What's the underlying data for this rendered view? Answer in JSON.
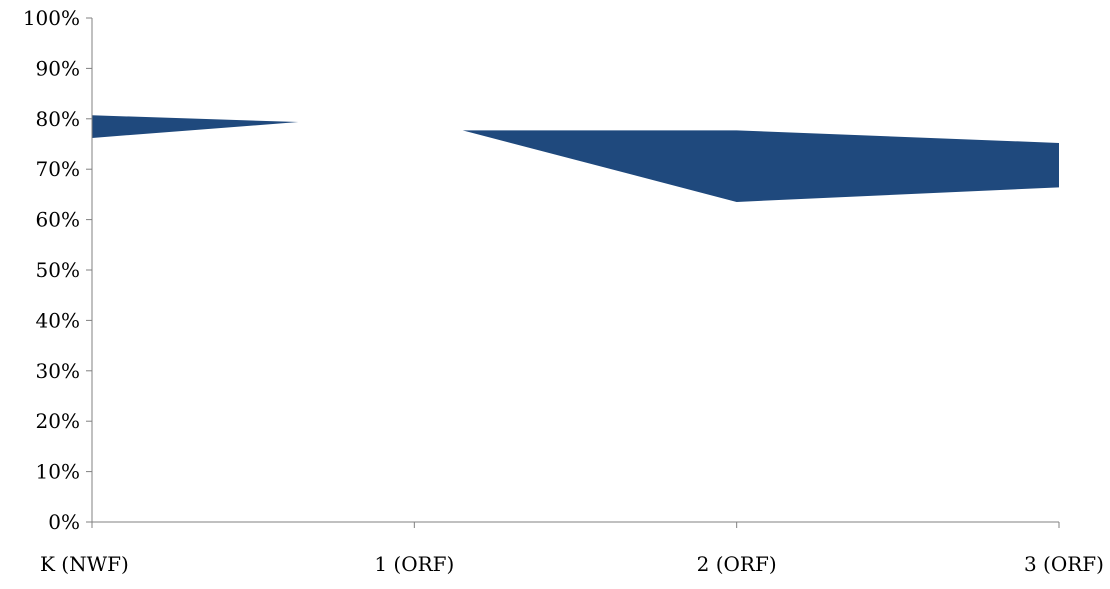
{
  "chart_data": {
    "type": "area",
    "categories": [
      "K (NWF)",
      "1 (ORF)",
      "2 (ORF)",
      "3 (ORF)"
    ],
    "band": {
      "lower": [
        76.2,
        78.6,
        63.5,
        66.4
      ],
      "upper": [
        80.7,
        78.6,
        77.7,
        75.2
      ]
    },
    "y_tick_labels": [
      "0%",
      "10%",
      "20%",
      "30%",
      "40%",
      "50%",
      "60%",
      "70%",
      "80%",
      "90%",
      "100%"
    ],
    "ylim": [
      0,
      100
    ],
    "y_unit": "percent",
    "grid": false,
    "legend": "none",
    "fill_color": "#1f497d",
    "notes": "Band between the first and second categories is broken (gap) near 1 (ORF); upper and lower edges converge to a point on each side."
  }
}
